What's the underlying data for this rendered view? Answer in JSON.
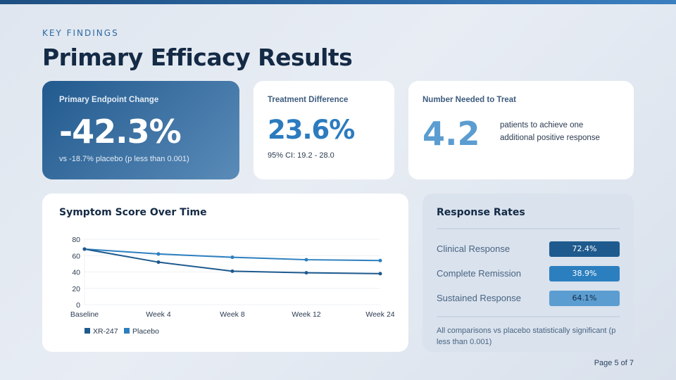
{
  "header": {
    "kicker": "KEY FINDINGS",
    "title": "Primary Efficacy Results"
  },
  "cards": {
    "primary": {
      "label": "Primary Endpoint Change",
      "value": "-42.3%",
      "sub": "vs -18.7% placebo (p less than 0.001)"
    },
    "difference": {
      "label": "Treatment Difference",
      "value": "23.6%",
      "sub": "95% CI: 19.2 - 28.0"
    },
    "nnt": {
      "label": "Number Needed to Treat",
      "value": "4.2",
      "desc": "patients to achieve one additional positive response"
    }
  },
  "chart_data": {
    "type": "line",
    "title": "Symptom Score Over Time",
    "categories": [
      "Baseline",
      "Week 4",
      "Week 8",
      "Week 12",
      "Week 24"
    ],
    "yticks": [
      "0",
      "20",
      "40",
      "60",
      "80"
    ],
    "ylim": [
      0,
      80
    ],
    "grid": true,
    "legend": "bottom-left",
    "series": [
      {
        "name": "XR-247",
        "values": [
          68,
          52,
          41,
          39,
          38
        ],
        "color": "#1e5a8e"
      },
      {
        "name": "Placebo",
        "values": [
          68,
          62,
          58,
          55,
          54
        ],
        "color": "#2c7fbf"
      }
    ]
  },
  "response": {
    "title": "Response Rates",
    "items": [
      {
        "label": "Clinical Response",
        "value": "72.4%",
        "bg": "#1e5a8e",
        "fg": "#ffffff"
      },
      {
        "label": "Complete Remission",
        "value": "38.9%",
        "bg": "#2c7fbf",
        "fg": "#ffffff"
      },
      {
        "label": "Sustained Response",
        "value": "64.1%",
        "bg": "#5b9dd0",
        "fg": "#142a45"
      }
    ],
    "note": "All comparisons vs placebo statistically significant (p less than 0.001)"
  },
  "footer": {
    "page": "Page 5 of 7"
  }
}
